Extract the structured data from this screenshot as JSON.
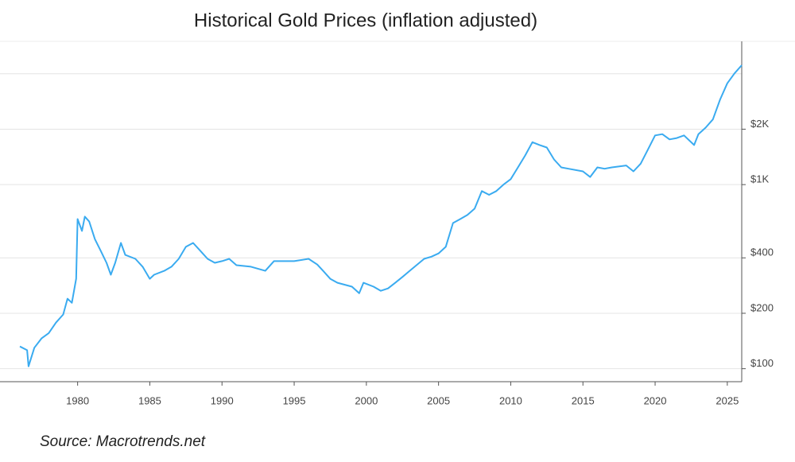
{
  "chart_data": {
    "type": "line",
    "title": "Historical Gold Prices (inflation adjusted)",
    "source": "Source: Macrotrends.net",
    "log_y": true,
    "y_axis_side": "right",
    "grid": true,
    "color": "#3aabf0",
    "xlim": [
      1976,
      2026
    ],
    "xticks": [
      1980,
      1985,
      1990,
      1995,
      2000,
      2005,
      2010,
      2015,
      2020,
      2025
    ],
    "ylim": [
      85,
      6000
    ],
    "yticks": [
      {
        "value": 100,
        "label": "$100"
      },
      {
        "value": 200,
        "label": "$200"
      },
      {
        "value": 400,
        "label": "$400"
      },
      {
        "value": 1000,
        "label": "$1K"
      },
      {
        "value": 2000,
        "label": "$2K"
      }
    ],
    "ygrid": [
      100,
      200,
      400,
      1000,
      2000,
      4000
    ],
    "x": [
      1976.0,
      1976.5,
      1976.6,
      1977,
      1977.5,
      1978,
      1978.5,
      1979,
      1979.3,
      1979.6,
      1979.9,
      1980.0,
      1980.3,
      1980.5,
      1980.8,
      1981.2,
      1981.6,
      1982.0,
      1982.3,
      1982.6,
      1983.0,
      1983.3,
      1984.0,
      1984.5,
      1985.0,
      1985.3,
      1986,
      1986.5,
      1987,
      1987.5,
      1988,
      1988.5,
      1989,
      1989.5,
      1990,
      1990.5,
      1991,
      1992,
      1993,
      1993.6,
      1994,
      1995,
      1996,
      1996.6,
      1997,
      1997.5,
      1998,
      1999,
      1999.5,
      1999.8,
      2000.5,
      2001,
      2001.5,
      2002,
      2002.5,
      2003,
      2004,
      2004.5,
      2005,
      2005.5,
      2006,
      2006.5,
      2007,
      2007.5,
      2008,
      2008.5,
      2009,
      2009.5,
      2010,
      2010.5,
      2011,
      2011.5,
      2012,
      2012.5,
      2013,
      2013.5,
      2014,
      2015,
      2015.5,
      2016,
      2016.5,
      2017,
      2018,
      2018.5,
      2019,
      2019.5,
      2020,
      2020.5,
      2021,
      2021.5,
      2022,
      2022.7,
      2023,
      2023.5,
      2024,
      2024.5,
      2025,
      2025.5,
      2026
    ],
    "values": [
      132,
      126,
      103,
      130,
      146,
      156,
      178,
      197,
      240,
      228,
      308,
      650,
      560,
      670,
      630,
      505,
      437,
      376,
      324,
      376,
      482,
      415,
      395,
      358,
      308,
      324,
      340,
      358,
      395,
      459,
      482,
      437,
      395,
      376,
      384,
      395,
      365,
      358,
      340,
      384,
      384,
      384,
      395,
      368,
      340,
      308,
      293,
      279,
      257,
      293,
      279,
      265,
      273,
      293,
      315,
      340,
      395,
      406,
      423,
      459,
      618,
      650,
      684,
      740,
      922,
      880,
      922,
      1000,
      1070,
      1240,
      1440,
      1700,
      1640,
      1590,
      1370,
      1240,
      1220,
      1180,
      1100,
      1240,
      1220,
      1240,
      1270,
      1180,
      1300,
      1550,
      1850,
      1880,
      1760,
      1790,
      1850,
      1640,
      1880,
      2040,
      2260,
      2900,
      3550,
      4020,
      4450
    ]
  }
}
